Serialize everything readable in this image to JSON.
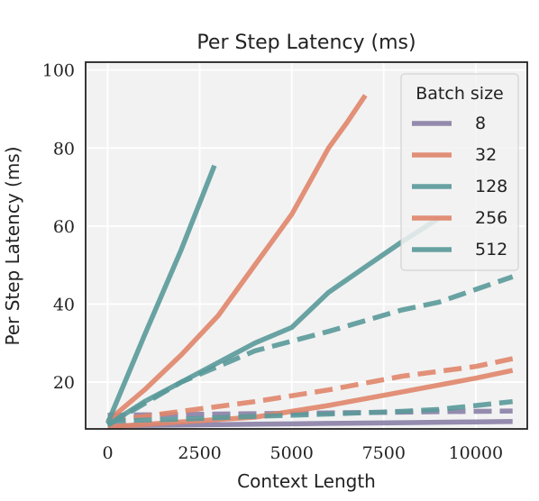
{
  "chart_data": {
    "type": "line",
    "title": "Per Step Latency (ms)",
    "xlabel": "Context Length",
    "ylabel": "Per Step Latency (ms)",
    "xlim": [
      -600,
      11400
    ],
    "ylim": [
      8,
      102
    ],
    "xticks": [
      0,
      2500,
      5000,
      7500,
      10000
    ],
    "yticks": [
      20,
      40,
      60,
      80,
      100
    ],
    "grid": true,
    "legend": {
      "title": "Batch size",
      "position": "top-right",
      "entries": [
        {
          "label": "8",
          "color": "#8a7fa6"
        },
        {
          "label": "32",
          "color": "#e0856a"
        },
        {
          "label": "128",
          "color": "#5a9999"
        },
        {
          "label": "256",
          "color": "#e0856a"
        },
        {
          "label": "512",
          "color": "#5a9999"
        }
      ]
    },
    "series": [
      {
        "name": "8",
        "color": "#8a7fa6",
        "style": "solid",
        "x": [
          0,
          1000,
          2000,
          3000,
          4000,
          5000,
          6000,
          7000,
          8000,
          9000,
          10000,
          11000
        ],
        "y": [
          8.8,
          8.9,
          9.0,
          9.1,
          9.2,
          9.3,
          9.4,
          9.5,
          9.6,
          9.7,
          9.8,
          9.9
        ]
      },
      {
        "name": "8",
        "color": "#8a7fa6",
        "style": "dashed",
        "x": [
          0,
          1000,
          2000,
          3000,
          4000,
          5000,
          6000,
          7000,
          8000,
          9000,
          10000,
          11000
        ],
        "y": [
          11.5,
          11.6,
          11.7,
          11.8,
          11.9,
          12.0,
          12.1,
          12.2,
          12.3,
          12.4,
          12.5,
          12.6
        ]
      },
      {
        "name": "32",
        "color": "#e0856a",
        "style": "solid",
        "x": [
          0,
          2000,
          4000,
          5000,
          6000,
          8000,
          10000,
          11000
        ],
        "y": [
          8.5,
          9.8,
          11.0,
          12.5,
          14.0,
          17.5,
          21.0,
          23.0
        ]
      },
      {
        "name": "32",
        "color": "#e0856a",
        "style": "dashed",
        "x": [
          0,
          2000,
          4000,
          6000,
          8000,
          10000,
          11000
        ],
        "y": [
          10.0,
          12.5,
          15.0,
          18.0,
          21.5,
          24.0,
          26.0
        ]
      },
      {
        "name": "128",
        "color": "#5a9999",
        "style": "dashed",
        "x": [
          0,
          2000,
          4000,
          6000,
          8000,
          9000,
          11000
        ],
        "y": [
          10.0,
          10.5,
          11.2,
          11.8,
          12.5,
          13.0,
          15.0
        ]
      },
      {
        "name": "128",
        "color": "#5a9999",
        "style": "dashed",
        "x": [
          0,
          2000,
          4000,
          6000,
          8000,
          9000,
          11000
        ],
        "y": [
          9.0,
          20.0,
          28.0,
          33.0,
          38.5,
          40.5,
          47.0
        ]
      },
      {
        "name": "256",
        "color": "#e0856a",
        "style": "solid",
        "x": [
          0,
          1000,
          2000,
          3000,
          4000,
          5000,
          6000,
          6500,
          7000
        ],
        "y": [
          10.0,
          18.0,
          27.0,
          37.0,
          50.0,
          63.0,
          80.0,
          86.5,
          93.5
        ]
      },
      {
        "name": "512",
        "color": "#5a9999",
        "style": "solid",
        "x": [
          0,
          1000,
          2000,
          3000,
          4000,
          5000,
          6000,
          7000,
          8000,
          9000
        ],
        "y": [
          9.0,
          15.0,
          20.0,
          25.0,
          30.0,
          34.0,
          43.0,
          49.5,
          56.0,
          62.0
        ]
      },
      {
        "name": "512",
        "color": "#5a9999",
        "style": "solid",
        "x": [
          0,
          1000,
          2000,
          2900
        ],
        "y": [
          9.5,
          32.0,
          54.0,
          75.5
        ]
      }
    ]
  }
}
